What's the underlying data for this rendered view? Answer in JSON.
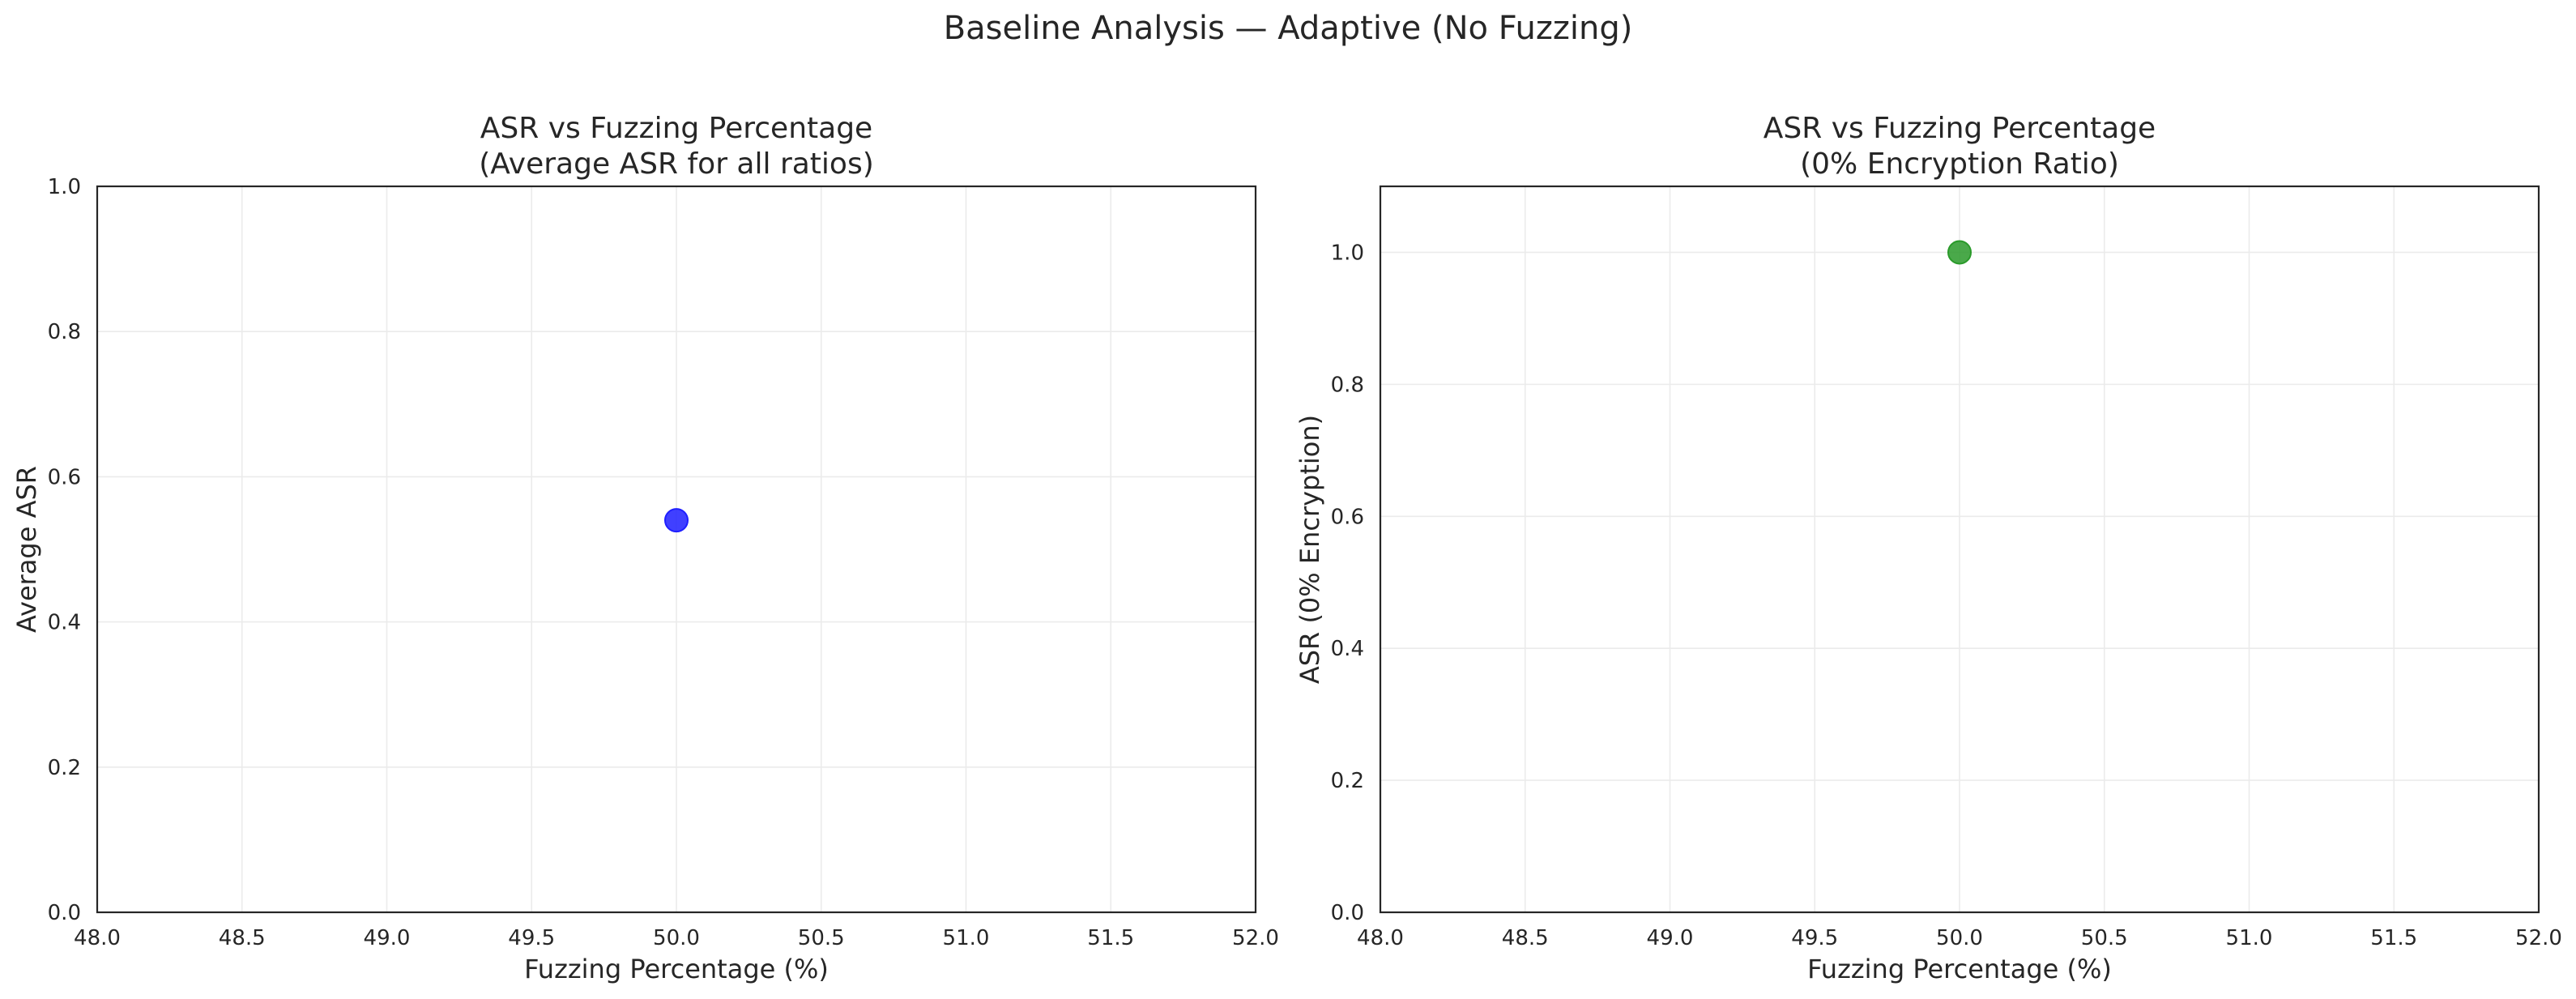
{
  "figure": {
    "suptitle": "Baseline Analysis — Adaptive (No Fuzzing)"
  },
  "chart_data": [
    {
      "type": "scatter",
      "title_line1": "ASR vs Fuzzing Percentage",
      "title_line2": "(Average ASR for all ratios)",
      "xlabel": "Fuzzing Percentage (%)",
      "ylabel": "Average ASR",
      "xlim": [
        48.0,
        52.0
      ],
      "ylim": [
        0.0,
        1.0
      ],
      "xticks": [
        "48.0",
        "48.5",
        "49.0",
        "49.5",
        "50.0",
        "50.5",
        "51.0",
        "51.5",
        "52.0"
      ],
      "yticks": [
        "0.0",
        "0.2",
        "0.4",
        "0.6",
        "0.8",
        "1.0"
      ],
      "grid": true,
      "series": [
        {
          "color": "#1f1fff",
          "points": [
            {
              "x": 50.0,
              "y": 0.54
            }
          ]
        }
      ]
    },
    {
      "type": "scatter",
      "title_line1": "ASR vs Fuzzing Percentage",
      "title_line2": "(0% Encryption Ratio)",
      "xlabel": "Fuzzing Percentage (%)",
      "ylabel": "ASR (0% Encryption)",
      "xlim": [
        48.0,
        52.0
      ],
      "ylim": [
        0.0,
        1.1
      ],
      "xticks": [
        "48.0",
        "48.5",
        "49.0",
        "49.5",
        "50.0",
        "50.5",
        "51.0",
        "51.5",
        "52.0"
      ],
      "yticks": [
        "0.0",
        "0.2",
        "0.4",
        "0.6",
        "0.8",
        "1.0"
      ],
      "grid": true,
      "series": [
        {
          "color": "#2a9a2a",
          "points": [
            {
              "x": 50.0,
              "y": 1.0
            }
          ]
        }
      ]
    }
  ]
}
